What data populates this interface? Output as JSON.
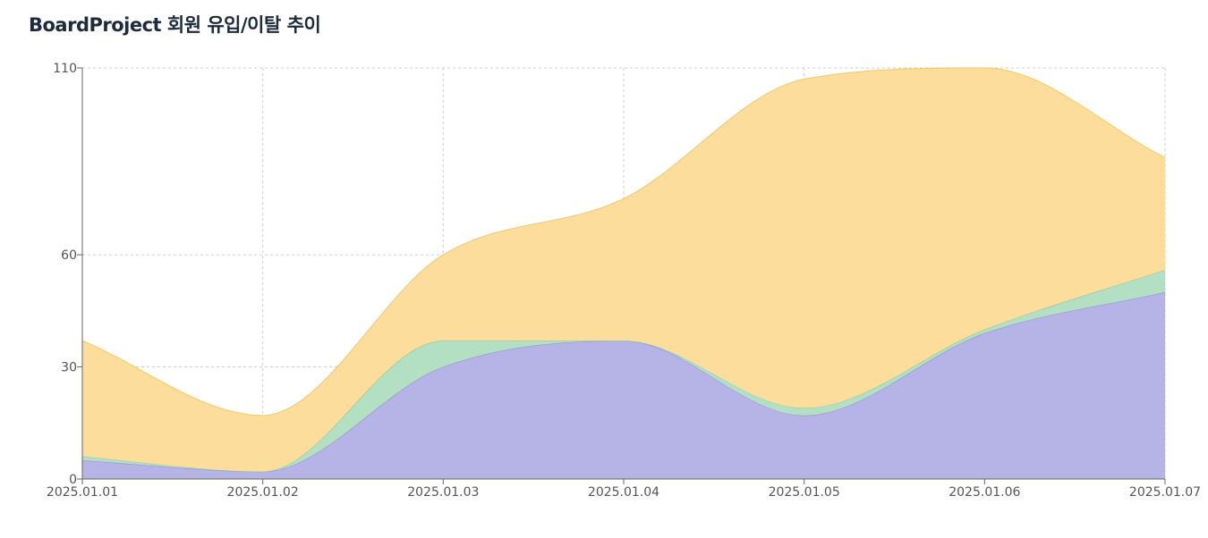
{
  "chart_data": {
    "type": "area",
    "stacked": true,
    "title": "BoardProject 회원 유입/이탈 추이",
    "xlabel": "",
    "ylabel": "",
    "categories": [
      "2025.01.01",
      "2025.01.02",
      "2025.01.03",
      "2025.01.04",
      "2025.01.05",
      "2025.01.06",
      "2025.01.07"
    ],
    "yticks": [
      0,
      30,
      60,
      110
    ],
    "ylim": [
      0,
      110
    ],
    "grid": true,
    "series": [
      {
        "name": "series-purple",
        "color": "#b6b3e6",
        "stroke": "#8f8ad6",
        "values": [
          5,
          2,
          30,
          37,
          17,
          39,
          50
        ]
      },
      {
        "name": "series-green",
        "color": "#b3dfc2",
        "stroke": "#7fc79b",
        "values": [
          1,
          0,
          7,
          0,
          2,
          1,
          6
        ]
      },
      {
        "name": "series-yellow",
        "color": "#fddd9c",
        "stroke": "#f0c869",
        "values": [
          31,
          15,
          23,
          38,
          88,
          70,
          30
        ]
      }
    ]
  }
}
